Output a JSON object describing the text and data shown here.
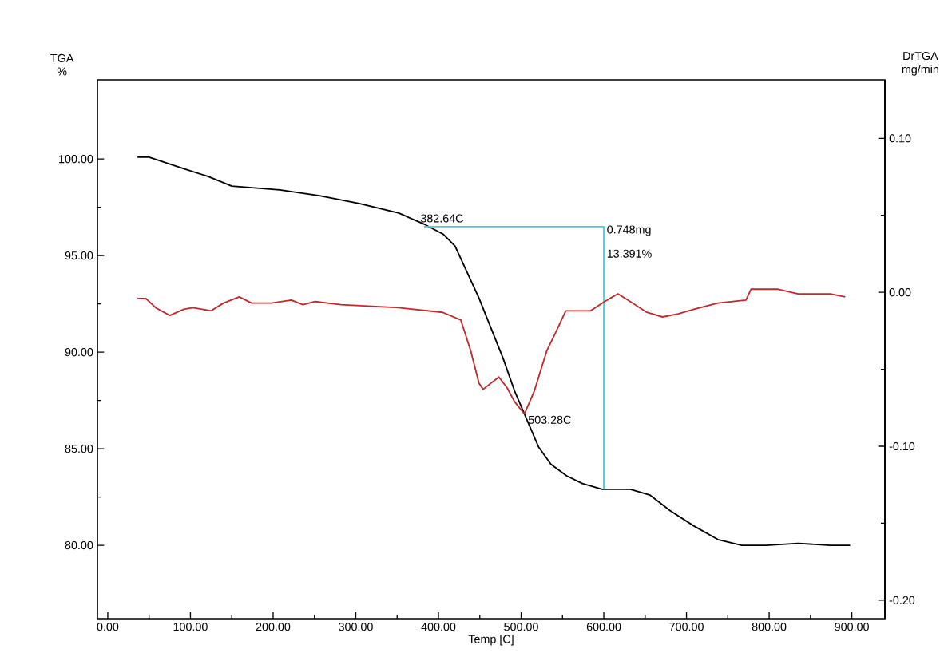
{
  "chart_data": {
    "type": "line",
    "xlabel": "Temp [C]",
    "ylabel": "TGA %",
    "y2label": "DrTGA mg/min",
    "xlim": [
      -12.5,
      940
    ],
    "ylim": [
      76.2,
      104.1
    ],
    "y2lim": [
      -0.212,
      0.138
    ],
    "xticks": [
      {
        "value": 0,
        "label": "0.00"
      },
      {
        "value": 100,
        "label": "100.00"
      },
      {
        "value": 200,
        "label": "200.00"
      },
      {
        "value": 300,
        "label": "300.00"
      },
      {
        "value": 400,
        "label": "400.00"
      },
      {
        "value": 500,
        "label": "500.00"
      },
      {
        "value": 600,
        "label": "600.00"
      },
      {
        "value": 700,
        "label": "700.00"
      },
      {
        "value": 800,
        "label": "800.00"
      },
      {
        "value": 900,
        "label": "900.00"
      }
    ],
    "yticks": [
      {
        "value": 80,
        "label": "80.00"
      },
      {
        "value": 85,
        "label": "85.00"
      },
      {
        "value": 90,
        "label": "90.00"
      },
      {
        "value": 95,
        "label": "95.00"
      },
      {
        "value": 100,
        "label": "100.00"
      }
    ],
    "y2ticks": [
      {
        "value": -0.2,
        "label": "-0.20"
      },
      {
        "value": -0.1,
        "label": "-0.10"
      },
      {
        "value": 0,
        "label": "0.00"
      },
      {
        "value": 0.1,
        "label": "0.10"
      }
    ],
    "series": [
      {
        "color": "#000000",
        "x": [
          36,
          50,
          92,
          121,
          150,
          208,
          256,
          304,
          352,
          384,
          406,
          420,
          434,
          449,
          463,
          478,
          492,
          507,
          521,
          536,
          555,
          574,
          598,
          632,
          656,
          680,
          709,
          738,
          767,
          796,
          835,
          874,
          898
        ],
        "values": [
          100.1,
          100.1,
          99.5,
          99.1,
          98.6,
          98.4,
          98.1,
          97.7,
          97.2,
          96.6,
          96.1,
          95.5,
          94.2,
          92.8,
          91.3,
          89.7,
          88.0,
          86.5,
          85.1,
          84.2,
          83.6,
          83.2,
          82.9,
          82.9,
          82.6,
          81.8,
          81.0,
          80.3,
          80.0,
          80.0,
          80.1,
          80.0,
          80.0
        ]
      },
      {
        "color": "#c0282d",
        "axis": "y2",
        "x": [
          36,
          46,
          58,
          75,
          92,
          103,
          125,
          140,
          159,
          174,
          198,
          222,
          236,
          251,
          282,
          352,
          405,
          427,
          430,
          439,
          449,
          454,
          473,
          483,
          492,
          504,
          516,
          531,
          541,
          554,
          584,
          601,
          617,
          632,
          652,
          671,
          690,
          709,
          738,
          772,
          778,
          811,
          835,
          874,
          892
        ],
        "values": [
          -0.004,
          -0.004,
          -0.01,
          -0.015,
          -0.011,
          -0.01,
          -0.012,
          -0.007,
          -0.003,
          -0.007,
          -0.007,
          -0.005,
          -0.008,
          -0.006,
          -0.008,
          -0.01,
          -0.013,
          -0.018,
          -0.023,
          -0.038,
          -0.059,
          -0.063,
          -0.055,
          -0.062,
          -0.071,
          -0.079,
          -0.064,
          -0.038,
          -0.027,
          -0.012,
          -0.012,
          -0.006,
          -0.001,
          -0.006,
          -0.013,
          -0.016,
          -0.014,
          -0.011,
          -0.007,
          -0.005,
          0.002,
          0.002,
          -0.001,
          -0.001,
          -0.003
        ]
      },
      {
        "color": "#40d0d8",
        "x": [
          382.64,
          600,
          600
        ],
        "values": [
          96.5,
          96.5,
          82.9
        ]
      }
    ],
    "annotations": [
      {
        "text": "382.64C",
        "x": 382.64,
        "y": 96.5
      },
      {
        "text": "503.28C",
        "x": 503.28,
        "y": 86.5
      },
      {
        "text": "0.748mg",
        "x": 600,
        "y": 96.5
      },
      {
        "text": "13.391%",
        "x": 600,
        "y": 95.1
      }
    ]
  }
}
